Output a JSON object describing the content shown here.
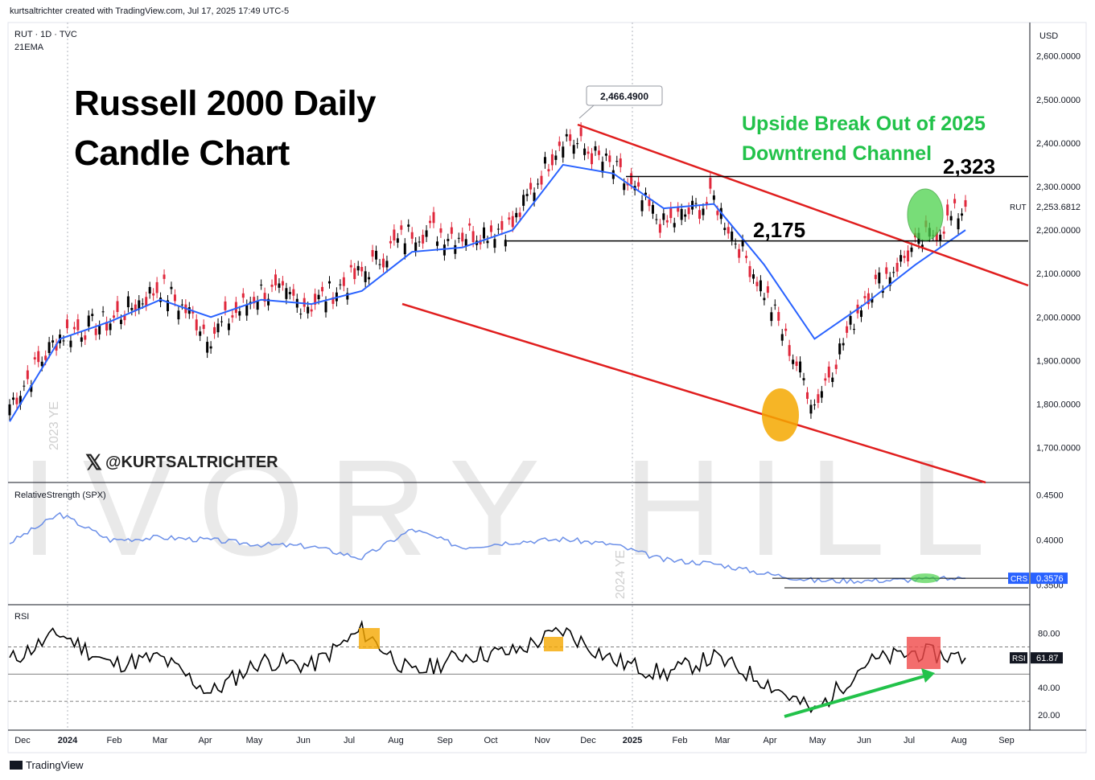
{
  "header": {
    "credit": "kurtsaltrichter created with TradingView.com, Jul 17, 2025 17:49 UTC-5",
    "symbol_line": "RUT · 1D · TVC",
    "indicator": "21EMA",
    "currency": "USD"
  },
  "annotations": {
    "title_line1": "Russell 2000 Daily",
    "title_line2": "Candle Chart",
    "breakout_line1": "Upside Break Out of 2025",
    "breakout_line2": "Downtrend Channel",
    "level_high": "2,323",
    "level_low": "2,175",
    "peak_callout": "2,466.4900",
    "handle": "@KURTSALTRICHTER",
    "watermark": "IVORY HILL",
    "ye_2023": "2023 YE",
    "ye_2024": "2024 YE"
  },
  "footer": {
    "brand": "TradingView"
  },
  "colors": {
    "ema": "#2962ff",
    "channel": "#e01e1e",
    "up_candle": "#000000",
    "down_candle": "#e0283c",
    "breakout_text": "#22c24a",
    "rs_line": "#6b8fe8",
    "rsi_line": "#000000",
    "orange_marker": "#f5a800",
    "green_marker": "#4cd24c",
    "red_marker": "#f04848"
  },
  "chart_data": [
    {
      "type": "line",
      "name": "RUT price (candles approximated by weekly closes) with 21EMA",
      "x": [
        "Dec 2023",
        "Jan 2024",
        "Feb",
        "Mar",
        "Apr",
        "May",
        "Jun",
        "Jul",
        "Aug",
        "Sep",
        "Oct",
        "Nov",
        "Dec",
        "2025",
        "Feb",
        "Mar",
        "Apr",
        "May",
        "Jun",
        "Jul"
      ],
      "xticks": [
        "Dec",
        "2024",
        "Feb",
        "Mar",
        "Apr",
        "May",
        "Jun",
        "Jul",
        "Aug",
        "Sep",
        "Oct",
        "Nov",
        "Dec",
        "2025",
        "Feb",
        "Mar",
        "Apr",
        "May",
        "Jun",
        "Jul",
        "Aug",
        "Sep"
      ],
      "series": [
        {
          "name": "RUT close",
          "values": [
            1800,
            1960,
            1990,
            2070,
            1960,
            2060,
            2030,
            2100,
            2200,
            2190,
            2210,
            2420,
            2340,
            2210,
            2270,
            2060,
            1800,
            2050,
            2160,
            2253.68
          ]
        },
        {
          "name": "21EMA",
          "values": [
            1760,
            1950,
            1990,
            2040,
            2000,
            2040,
            2030,
            2060,
            2150,
            2160,
            2200,
            2350,
            2330,
            2250,
            2260,
            2120,
            1950,
            2030,
            2120,
            2200
          ]
        }
      ],
      "yticks": [
        "2,600.0000",
        "2,500.0000",
        "2,400.0000",
        "2,300.0000",
        "2,200.0000",
        "2,100.0000",
        "2,000.0000",
        "1,900.0000",
        "1,800.0000",
        "1,700.0000"
      ],
      "ylim": [
        1620,
        2640
      ],
      "last_value": "2,253.6812",
      "last_label": "RUT",
      "peak": 2466.49,
      "horizontal_levels": [
        2323,
        2175
      ]
    },
    {
      "type": "line",
      "name": "RelativeStrength (SPX)",
      "label": "RelativeStrength (SPX)",
      "x": [
        "Dec 2023",
        "Jan 2024",
        "Feb",
        "Mar",
        "Apr",
        "May",
        "Jun",
        "Jul",
        "Aug",
        "Sep",
        "Oct",
        "Nov",
        "Dec",
        "2025",
        "Feb",
        "Mar",
        "Apr",
        "May",
        "Jun",
        "Jul"
      ],
      "values": [
        0.397,
        0.429,
        0.4,
        0.403,
        0.4,
        0.395,
        0.393,
        0.38,
        0.412,
        0.392,
        0.398,
        0.401,
        0.395,
        0.378,
        0.374,
        0.363,
        0.355,
        0.355,
        0.356,
        0.3576
      ],
      "yticks": [
        "0.4500",
        "0.4000",
        "0.3500"
      ],
      "ylim": [
        0.33,
        0.455
      ],
      "last_value": "0.3576",
      "last_label": "CRS"
    },
    {
      "type": "line",
      "name": "RSI",
      "label": "RSI",
      "x": [
        "Dec 2023",
        "Jan 2024",
        "Feb",
        "Mar",
        "Apr",
        "May",
        "Jun",
        "Jul",
        "Aug",
        "Sep",
        "Oct",
        "Nov",
        "Dec",
        "2025",
        "Feb",
        "Mar",
        "Apr",
        "May",
        "Jun",
        "Jul"
      ],
      "values": [
        60,
        80,
        57,
        62,
        36,
        60,
        56,
        82,
        50,
        64,
        66,
        82,
        60,
        50,
        62,
        45,
        22,
        58,
        66,
        61.87
      ],
      "yticks": [
        "80.00",
        "40.00",
        "20.00"
      ],
      "ylim": [
        10,
        95
      ],
      "levels": [
        70,
        50,
        30
      ],
      "last_value": "61.87",
      "last_label": "RSI"
    }
  ]
}
